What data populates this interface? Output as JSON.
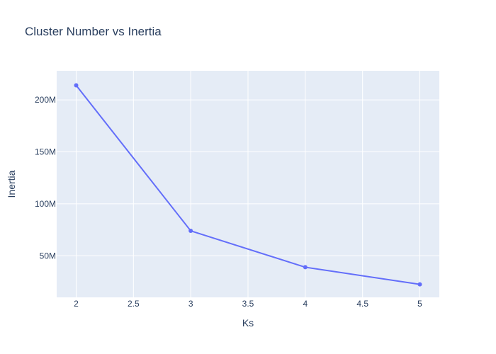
{
  "chart_data": {
    "type": "line",
    "title": "Cluster Number vs Inertia",
    "xlabel": "Ks",
    "ylabel": "Inertia",
    "x": [
      2,
      3,
      4,
      5
    ],
    "series": [
      {
        "name": "",
        "values": [
          214000000,
          74000000,
          39000000,
          22500000
        ]
      }
    ],
    "xlim": [
      1.83,
      5.17
    ],
    "ylim": [
      10000000,
      228000000
    ],
    "x_ticks": [
      2,
      2.5,
      3,
      3.5,
      4,
      4.5,
      5
    ],
    "x_tick_labels": [
      "2",
      "2.5",
      "3",
      "3.5",
      "4",
      "4.5",
      "5"
    ],
    "y_ticks": [
      50000000,
      100000000,
      150000000,
      200000000
    ],
    "y_tick_labels": [
      "50M",
      "100M",
      "150M",
      "200M"
    ],
    "grid": true,
    "legend": "none",
    "colors": {
      "line": "#636efa",
      "plot_bg": "#e5ecf6",
      "grid": "#ffffff",
      "text": "#2a3f5f",
      "paper_bg": "#ffffff"
    }
  }
}
